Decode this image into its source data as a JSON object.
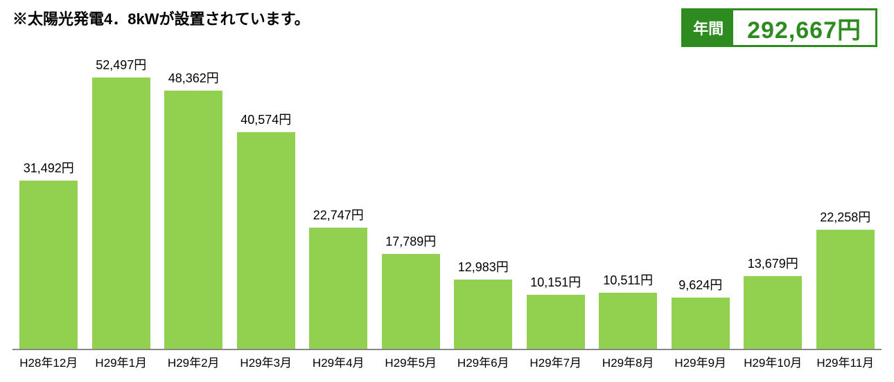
{
  "note_text": "※太陽光発電4．8kWが設置されています。",
  "total": {
    "label": "年間",
    "value": "292,667円"
  },
  "chart": {
    "type": "bar",
    "bar_color": "#92d050",
    "axis_color": "#888888",
    "background_color": "#ffffff",
    "text_color": "#000000",
    "label_fontsize": 18,
    "xlabel_fontsize": 17,
    "ylim": [
      0,
      55000
    ],
    "bar_width_percent": 80,
    "categories": [
      "H28年12月",
      "H29年1月",
      "H29年2月",
      "H29年3月",
      "H29年4月",
      "H29年5月",
      "H29年6月",
      "H29年7月",
      "H29年8月",
      "H29年9月",
      "H29年10月",
      "H29年11月"
    ],
    "values": [
      31492,
      52497,
      48362,
      40574,
      22747,
      17789,
      12983,
      10151,
      10511,
      9624,
      13679,
      22258
    ],
    "value_labels": [
      "31,492円",
      "52,497円",
      "48,362円",
      "40,574円",
      "22,747円",
      "17,789円",
      "12,983円",
      "10,151円",
      "10,511円",
      "9,624円",
      "13,679円",
      "22,258円"
    ]
  }
}
